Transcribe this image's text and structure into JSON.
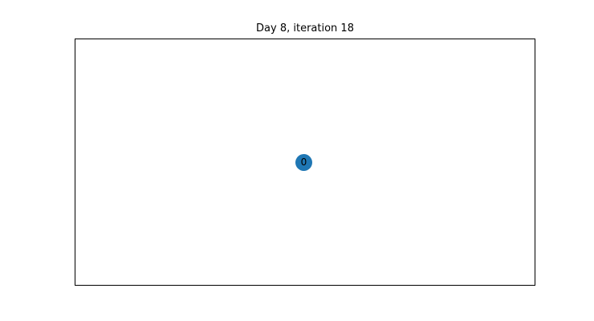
{
  "title": "Day 8, iteration 18",
  "nodes": [
    {
      "label": "0"
    }
  ],
  "colors": {
    "node_fill": "#1f77b4",
    "frame": "#000000",
    "background": "#ffffff"
  }
}
